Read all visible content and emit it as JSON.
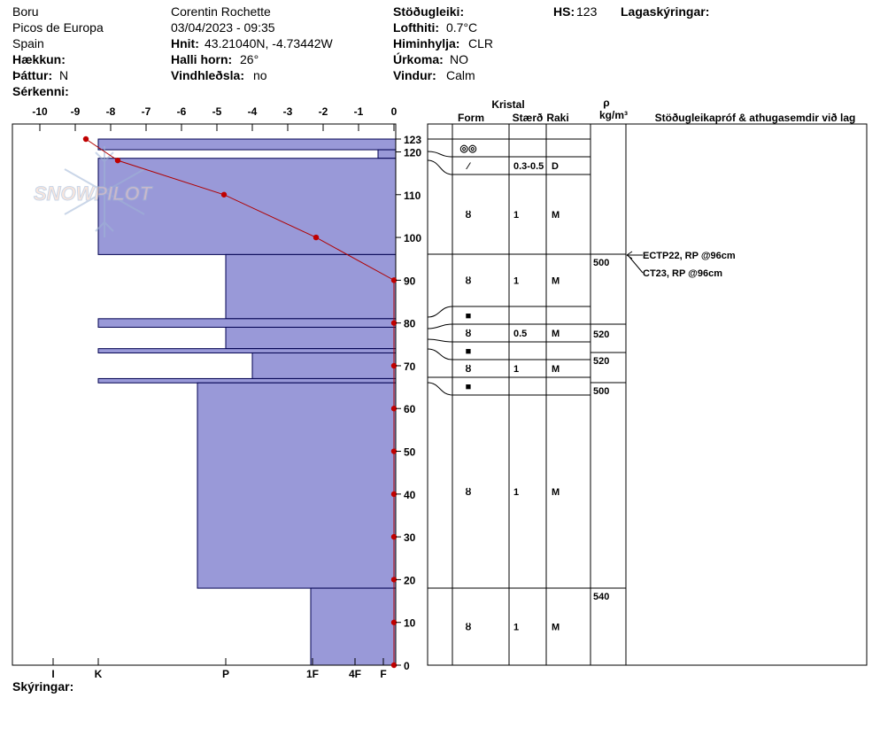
{
  "header": {
    "location": "Boru",
    "region": "Picos de Europa",
    "country": "Spain",
    "elevation_label": "Hækkun:",
    "aspect_label": "Þáttur:",
    "aspect_value": "N",
    "features_label": "Sérkenni:",
    "observer": "Corentin Rochette",
    "datetime": "03/04/2023 - 09:35",
    "coords_label": "Hnit:",
    "coords_value": "43.21040N, -4.73442W",
    "slope_label": "Halli horn:",
    "slope_value": "26°",
    "wind_loading_label": "Vindhleðsla:",
    "wind_loading_value": "no",
    "stability_label": "Stöðugleiki:",
    "air_temp_label": "Lofthiti:",
    "air_temp_value": "0.7°C",
    "sky_label": "Himinhylja:",
    "sky_value": "CLR",
    "precip_label": "Úrkoma:",
    "precip_value": "NO",
    "wind_label": "Vindur:",
    "wind_value": "Calm",
    "hs_label": "HS:",
    "hs_value": "123",
    "layer_notes_label": "Lagaskýringar:",
    "footer_label": "Skýringar:"
  },
  "columns": {
    "crystal": "Kristal",
    "form": "Form",
    "size": "Stærð",
    "moisture": "Raki",
    "density_symbol": "ρ",
    "density_unit": "kg/m³",
    "tests": "Stöðugleikapróf & athugasemdir við lag"
  },
  "logo_text": "SNOWPILOT",
  "colors": {
    "layer_fill": "#9999d8",
    "temp_line": "#b00000",
    "marker": "#c00000"
  },
  "chart_data": {
    "type": "snow_profile",
    "temp_axis": {
      "ticks": [
        "-10",
        "-9",
        "-8",
        "-7",
        "-6",
        "-5",
        "-4",
        "-3",
        "-2",
        "-1",
        "0"
      ],
      "range": [
        -10,
        0
      ]
    },
    "depth_axis": {
      "ticks": [
        "0",
        "10",
        "20",
        "30",
        "40",
        "50",
        "60",
        "70",
        "80",
        "90",
        "100",
        "110",
        "120",
        "123"
      ],
      "range": [
        0,
        123
      ]
    },
    "hardness_ticks": [
      "I",
      "K",
      "P",
      "1F",
      "4F",
      "F"
    ],
    "layers": [
      {
        "top": 123,
        "bottom": 120.5,
        "hardness": "K"
      },
      {
        "top": 120.5,
        "bottom": 118.5,
        "hardness": "F+"
      },
      {
        "top": 118.5,
        "bottom": 96,
        "hardness": "K"
      },
      {
        "top": 96,
        "bottom": 81,
        "hardness": "P"
      },
      {
        "top": 81,
        "bottom": 79,
        "hardness": "K"
      },
      {
        "top": 79,
        "bottom": 74,
        "hardness": "P"
      },
      {
        "top": 74,
        "bottom": 73,
        "hardness": "K"
      },
      {
        "top": 73,
        "bottom": 67,
        "hardness": "P+"
      },
      {
        "top": 67,
        "bottom": 66,
        "hardness": "K"
      },
      {
        "top": 66,
        "bottom": 18,
        "hardness": "P-"
      },
      {
        "top": 18,
        "bottom": 0,
        "hardness": "1F"
      }
    ],
    "temperature": [
      {
        "depth": 123,
        "temp": -8.7
      },
      {
        "depth": 118,
        "temp": -7.8
      },
      {
        "depth": 110,
        "temp": -4.8
      },
      {
        "depth": 100,
        "temp": -2.2
      },
      {
        "depth": 90,
        "temp": 0
      },
      {
        "depth": 80,
        "temp": 0
      },
      {
        "depth": 70,
        "temp": 0
      },
      {
        "depth": 60,
        "temp": 0
      },
      {
        "depth": 50,
        "temp": 0
      },
      {
        "depth": 40,
        "temp": 0
      },
      {
        "depth": 30,
        "temp": 0
      },
      {
        "depth": 20,
        "temp": 0
      },
      {
        "depth": 10,
        "temp": 0
      },
      {
        "depth": 0,
        "temp": 0
      }
    ],
    "grain_rows": [
      {
        "form": "◎◎",
        "size": "",
        "moisture": ""
      },
      {
        "form": "⁄",
        "size": "0.3-0.5",
        "moisture": "D"
      },
      {
        "form": "ȣ",
        "size": "1",
        "moisture": "M"
      },
      {
        "form": "ȣ",
        "size": "1",
        "moisture": "M"
      },
      {
        "form": "■",
        "size": "",
        "moisture": ""
      },
      {
        "form": "ȣ",
        "size": "0.5",
        "moisture": "M"
      },
      {
        "form": "■",
        "size": "",
        "moisture": ""
      },
      {
        "form": "ȣ",
        "size": "1",
        "moisture": "M"
      },
      {
        "form": "■",
        "size": "",
        "moisture": ""
      },
      {
        "form": "ȣ",
        "size": "1",
        "moisture": "M"
      },
      {
        "form": "ȣ",
        "size": "1",
        "moisture": "M"
      }
    ],
    "densities": [
      "500",
      "520",
      "520",
      "500",
      "540"
    ],
    "tests": [
      "ECTP22, RP @96cm",
      "CT23, RP @96cm"
    ]
  }
}
